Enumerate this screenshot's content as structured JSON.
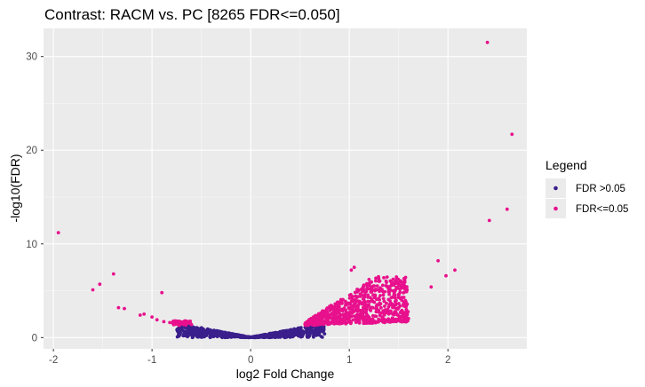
{
  "chart_data": {
    "type": "scatter",
    "title": "Contrast: RACM vs. PC  [8265 FDR<=0.050]",
    "xlabel": "log2 Fold Change",
    "ylabel": "-log10(FDR)",
    "xlim": [
      -2.1,
      2.8
    ],
    "ylim": [
      -1.2,
      33.0
    ],
    "x_ticks": [
      -2,
      -1,
      0,
      1,
      2
    ],
    "x_tick_labels": [
      "-2",
      "-1",
      "0",
      "1",
      "2"
    ],
    "y_ticks": [
      0,
      10,
      20,
      30
    ],
    "y_tick_labels": [
      "0",
      "10",
      "20",
      "30"
    ],
    "grid": true,
    "legend": {
      "title": "Legend",
      "position": "right",
      "entries": [
        {
          "label": "FDR >0.05",
          "color": "#3a1f8c"
        },
        {
          "label": "FDR<=0.05",
          "color": "#e8108c"
        }
      ]
    },
    "series": [
      {
        "name": "FDR >0.05",
        "color": "#3a1f8c",
        "description": "dense band along a V-shaped curve near y = 0 to 1.4, x approx -0.75 to 0.75",
        "band": {
          "x_min": -0.75,
          "x_max": 0.75,
          "y_max_left": 1.4,
          "y_max_right": 1.4
        }
      },
      {
        "name": "FDR<=0.05",
        "color": "#e8108c",
        "description": "dense fan for x > 0.5 up to about 1.6 (y up to ~7) plus scattered outliers",
        "points": [
          [
            -1.95,
            11.2
          ],
          [
            -1.6,
            5.1
          ],
          [
            -1.53,
            5.7
          ],
          [
            -1.39,
            6.8
          ],
          [
            -1.34,
            3.2
          ],
          [
            -1.28,
            3.1
          ],
          [
            -1.12,
            2.4
          ],
          [
            -1.08,
            2.5
          ],
          [
            -0.9,
            4.8
          ],
          [
            -1.0,
            2.2
          ],
          [
            -0.95,
            1.9
          ],
          [
            -0.88,
            1.7
          ],
          [
            -0.82,
            1.6
          ],
          [
            -0.78,
            1.5
          ],
          [
            -0.72,
            1.6
          ],
          [
            1.02,
            7.2
          ],
          [
            1.05,
            7.5
          ],
          [
            1.2,
            6.2
          ],
          [
            1.3,
            6.0
          ],
          [
            1.45,
            5.6
          ],
          [
            1.57,
            5.3
          ],
          [
            1.58,
            4.9
          ],
          [
            1.83,
            5.4
          ],
          [
            1.9,
            8.2
          ],
          [
            1.98,
            6.6
          ],
          [
            2.07,
            7.2
          ],
          [
            2.4,
            31.5
          ],
          [
            2.65,
            21.7
          ],
          [
            2.42,
            12.5
          ],
          [
            2.6,
            13.7
          ]
        ],
        "band": {
          "x_min": 0.55,
          "x_max": 1.6,
          "y_min": 1.3,
          "y_max": 6.5
        }
      }
    ]
  }
}
